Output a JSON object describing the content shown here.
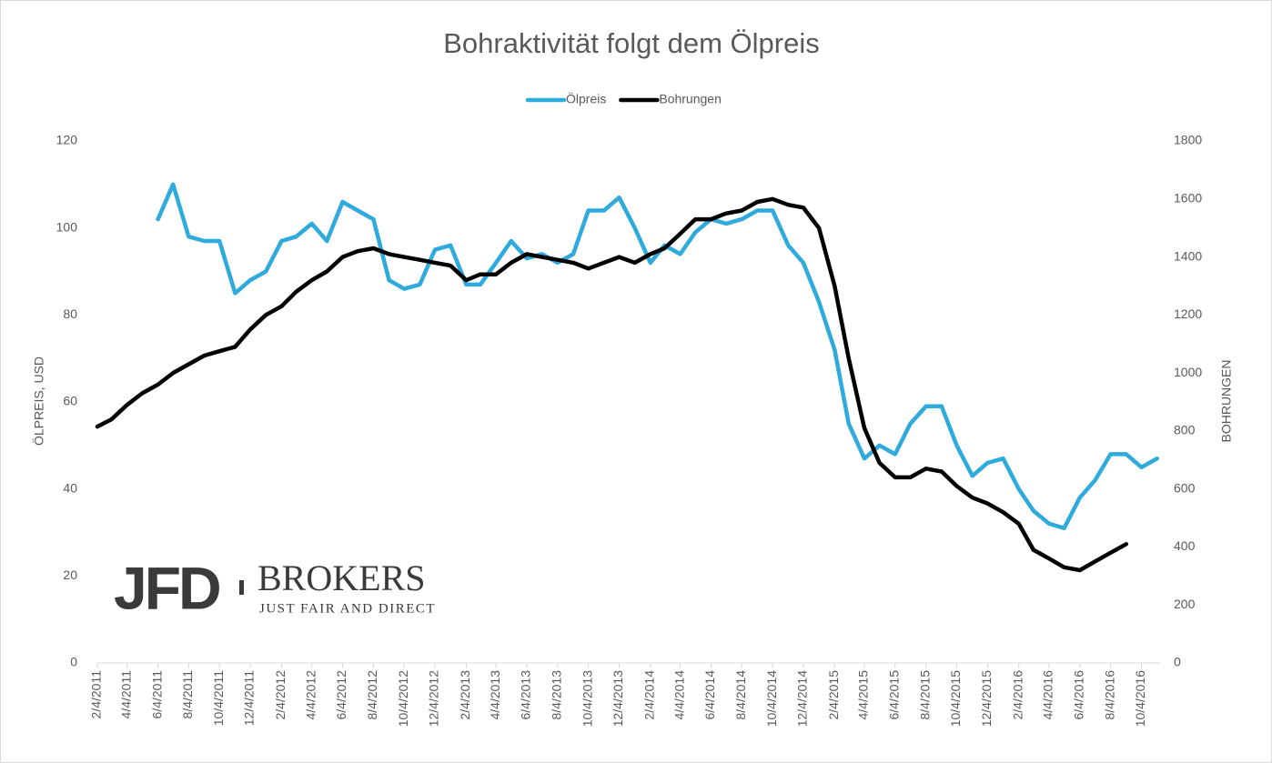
{
  "chart_data": {
    "type": "line",
    "title": "Bohraktivität folgt dem Ölpreis",
    "ylabel": "ÖLPREIS, USD",
    "y2label": "BOHRUNGEN",
    "x": [
      "2/4/2011",
      "3/4/2011",
      "4/4/2011",
      "5/4/2011",
      "6/4/2011",
      "7/4/2011",
      "8/4/2011",
      "9/4/2011",
      "10/4/2011",
      "11/4/2011",
      "12/4/2011",
      "1/4/2012",
      "2/4/2012",
      "3/4/2012",
      "4/4/2012",
      "5/4/2012",
      "6/4/2012",
      "7/4/2012",
      "8/4/2012",
      "9/4/2012",
      "10/4/2012",
      "11/4/2012",
      "12/4/2012",
      "1/4/2013",
      "2/4/2013",
      "3/4/2013",
      "4/4/2013",
      "5/4/2013",
      "6/4/2013",
      "7/4/2013",
      "8/4/2013",
      "9/4/2013",
      "10/4/2013",
      "11/4/2013",
      "12/4/2013",
      "1/4/2014",
      "2/4/2014",
      "3/4/2014",
      "4/4/2014",
      "5/4/2014",
      "6/4/2014",
      "7/4/2014",
      "8/4/2014",
      "9/4/2014",
      "10/4/2014",
      "11/4/2014",
      "12/4/2014",
      "1/4/2015",
      "2/4/2015",
      "3/4/2015",
      "4/4/2015",
      "5/4/2015",
      "6/4/2015",
      "7/4/2015",
      "8/4/2015",
      "9/4/2015",
      "10/4/2015",
      "11/4/2015",
      "12/4/2015",
      "1/4/2016",
      "2/4/2016",
      "3/4/2016",
      "4/4/2016",
      "5/4/2016",
      "6/4/2016",
      "7/4/2016",
      "8/4/2016",
      "9/4/2016",
      "10/4/2016",
      "11/4/2016"
    ],
    "series": [
      {
        "name": "Ölpreis",
        "color": "#2eaadc",
        "axis": "y",
        "values": [
          null,
          null,
          null,
          null,
          102,
          110,
          98,
          97,
          97,
          85,
          88,
          90,
          97,
          98,
          101,
          97,
          106,
          104,
          102,
          88,
          86,
          87,
          95,
          96,
          87,
          87,
          92,
          97,
          93,
          94,
          92,
          94,
          104,
          104,
          107,
          100,
          92,
          96,
          94,
          99,
          102,
          101,
          102,
          104,
          104,
          96,
          92,
          83,
          72,
          55,
          47,
          50,
          48,
          55,
          59,
          59,
          50,
          43,
          46,
          47,
          40,
          35,
          32,
          31,
          38,
          42,
          48,
          48,
          45,
          47
        ]
      },
      {
        "name": "Bohrungen",
        "color": "#000000",
        "axis": "y2",
        "values": [
          815,
          840,
          890,
          930,
          960,
          1000,
          1030,
          1060,
          1075,
          1090,
          1150,
          1200,
          1230,
          1280,
          1320,
          1350,
          1400,
          1420,
          1430,
          1410,
          1400,
          1390,
          1380,
          1370,
          1320,
          1340,
          1340,
          1380,
          1410,
          1400,
          1390,
          1380,
          1360,
          1380,
          1400,
          1380,
          1410,
          1430,
          1480,
          1530,
          1530,
          1550,
          1560,
          1590,
          1600,
          1580,
          1570,
          1500,
          1300,
          1050,
          810,
          690,
          640,
          640,
          670,
          660,
          610,
          570,
          550,
          520,
          480,
          390,
          360,
          330,
          320,
          350,
          380,
          410,
          null,
          null
        ]
      }
    ],
    "xlim": [
      "2/4/2011",
      "11/10/2016"
    ],
    "xticks": [
      "2/4/2011",
      "4/4/2011",
      "6/4/2011",
      "8/4/2011",
      "10/4/2011",
      "12/4/2011",
      "2/4/2012",
      "4/4/2012",
      "6/4/2012",
      "8/4/2012",
      "10/4/2012",
      "12/4/2012",
      "2/4/2013",
      "4/4/2013",
      "6/4/2013",
      "8/4/2013",
      "10/4/2013",
      "12/4/2013",
      "2/4/2014",
      "4/4/2014",
      "6/4/2014",
      "8/4/2014",
      "10/4/2014",
      "12/4/2014",
      "2/4/2015",
      "4/4/2015",
      "6/4/2015",
      "8/4/2015",
      "10/4/2015",
      "12/4/2015",
      "2/4/2016",
      "4/4/2016",
      "6/4/2016",
      "8/4/2016",
      "10/4/2016"
    ],
    "ylim": [
      0,
      120
    ],
    "yticks": [
      0,
      20,
      40,
      60,
      80,
      100,
      120
    ],
    "y2lim": [
      0,
      1800
    ],
    "y2ticks": [
      0,
      200,
      400,
      600,
      800,
      1000,
      1200,
      1400,
      1600,
      1800
    ],
    "legend": "top",
    "grid": false
  },
  "logo": {
    "mark": "JFD",
    "name": "BROKERS",
    "tagline": "JUST FAIR AND DIRECT"
  }
}
